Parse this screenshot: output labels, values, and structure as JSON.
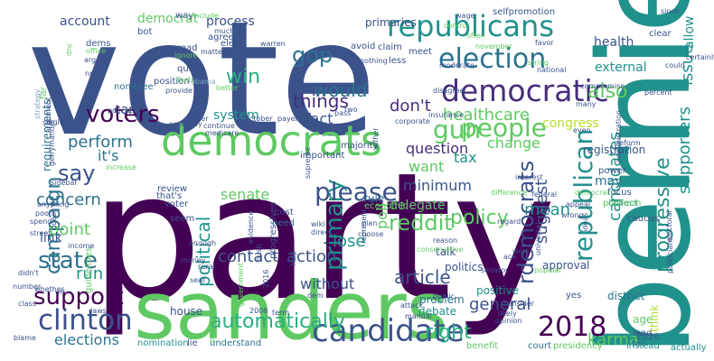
{
  "palette": {
    "dark_purple": "#440154",
    "purple": "#472d7b",
    "indigo": "#3b528b",
    "blue": "#2c728e",
    "teal": "#21918c",
    "green_teal": "#28ae80",
    "green": "#5ec962",
    "lime": "#addc30",
    "light_green": "#b5de2b",
    "pale_blue": "#7aa6c2"
  },
  "words": [
    {
      "text": "vote",
      "color": "indigo"
    },
    {
      "text": "party",
      "color": "dark_purple"
    },
    {
      "text": "sanders",
      "color": "green"
    },
    {
      "text": "bernie",
      "color": "teal"
    },
    {
      "text": "democrats",
      "color": "green"
    },
    {
      "text": "republicans",
      "color": "teal"
    },
    {
      "text": "democratic",
      "color": "purple"
    },
    {
      "text": "election",
      "color": "blue"
    },
    {
      "text": "candidate",
      "color": "indigo"
    },
    {
      "text": "clinton",
      "color": "indigo"
    },
    {
      "text": "2018",
      "color": "dark_purple"
    },
    {
      "text": "support",
      "color": "dark_purple"
    },
    {
      "text": "state",
      "color": "blue"
    },
    {
      "text": "primary",
      "color": "teal"
    },
    {
      "text": "voters",
      "color": "dark_purple"
    },
    {
      "text": "please",
      "color": "indigo"
    },
    {
      "text": "reddit",
      "color": "green"
    },
    {
      "text": "people",
      "color": "green"
    },
    {
      "text": "gun",
      "color": "green"
    },
    {
      "text": "policy",
      "color": "green"
    },
    {
      "text": "campaign",
      "color": "blue"
    },
    {
      "text": "republican",
      "color": "teal"
    },
    {
      "text": "progressive",
      "color": "teal"
    },
    {
      "text": "rdemocrats",
      "color": "indigo"
    },
    {
      "text": "say",
      "color": "indigo"
    },
    {
      "text": "gop",
      "color": "blue"
    },
    {
      "text": "would",
      "color": "blue"
    },
    {
      "text": "win",
      "color": "green_teal"
    },
    {
      "text": "political",
      "color": "teal"
    },
    {
      "text": "supporters",
      "color": "teal"
    },
    {
      "text": "issue",
      "color": "teal"
    },
    {
      "text": "candidates",
      "color": "teal"
    },
    {
      "text": "things",
      "color": "purple"
    },
    {
      "text": "healthcare",
      "color": "green"
    },
    {
      "text": "also",
      "color": "green"
    },
    {
      "text": "don't",
      "color": "purple"
    },
    {
      "text": "question",
      "color": "purple"
    },
    {
      "text": "contact",
      "color": "indigo"
    },
    {
      "text": "action",
      "color": "indigo"
    },
    {
      "text": "article",
      "color": "indigo"
    },
    {
      "text": "automatically",
      "color": "green_teal"
    },
    {
      "text": "right",
      "color": "green_teal"
    },
    {
      "text": "karma",
      "color": "green"
    },
    {
      "text": "general",
      "color": "indigo"
    },
    {
      "text": "mean",
      "color": "teal"
    },
    {
      "text": "suggest",
      "color": "indigo"
    },
    {
      "text": "lose",
      "color": "teal"
    },
    {
      "text": "point",
      "color": "green"
    },
    {
      "text": "run",
      "color": "teal"
    },
    {
      "text": "concern",
      "color": "blue"
    },
    {
      "text": "link",
      "color": "indigo"
    },
    {
      "text": "perform",
      "color": "blue"
    },
    {
      "text": "it's",
      "color": "blue"
    },
    {
      "text": "tax",
      "color": "teal"
    },
    {
      "text": "change",
      "color": "green"
    },
    {
      "text": "want",
      "color": "green"
    },
    {
      "text": "minimum",
      "color": "indigo"
    },
    {
      "text": "fact",
      "color": "indigo"
    },
    {
      "text": "senate",
      "color": "green"
    },
    {
      "text": "without",
      "color": "indigo"
    },
    {
      "text": "poll",
      "color": "green"
    },
    {
      "text": "elections",
      "color": "blue"
    },
    {
      "text": "account",
      "color": "indigo"
    },
    {
      "text": "democrat",
      "color": "green"
    },
    {
      "text": "process",
      "color": "indigo"
    },
    {
      "text": "care",
      "color": "indigo"
    },
    {
      "text": "system",
      "color": "teal"
    },
    {
      "text": "health",
      "color": "indigo"
    },
    {
      "text": "external",
      "color": "teal"
    },
    {
      "text": "congress",
      "color": "light_green"
    },
    {
      "text": "allow",
      "color": "teal"
    },
    {
      "text": "may",
      "color": "blue"
    },
    {
      "text": "delegate",
      "color": "green"
    },
    {
      "text": "talk",
      "color": "indigo"
    },
    {
      "text": "politics",
      "color": "indigo"
    },
    {
      "text": "house",
      "color": "indigo"
    },
    {
      "text": "positive",
      "color": "teal"
    },
    {
      "text": "approval",
      "color": "indigo"
    },
    {
      "text": "registration",
      "color": "indigo"
    },
    {
      "text": "district",
      "color": "blue"
    },
    {
      "text": "problem",
      "color": "blue"
    },
    {
      "text": "debate",
      "color": "teal"
    },
    {
      "text": "nomination",
      "color": "teal"
    },
    {
      "text": "lie",
      "color": "indigo"
    },
    {
      "text": "understand",
      "color": "blue"
    },
    {
      "text": "benefit",
      "color": "green"
    },
    {
      "text": "court",
      "color": "blue"
    },
    {
      "text": "presidency",
      "color": "green"
    },
    {
      "text": "instead",
      "color": "teal"
    },
    {
      "text": "actually",
      "color": "teal"
    },
    {
      "text": "2020",
      "color": "indigo"
    },
    {
      "text": "age",
      "color": "green"
    },
    {
      "text": "lead",
      "color": "indigo"
    },
    {
      "text": "lot",
      "color": "blue"
    },
    {
      "text": "think",
      "color": "lime"
    },
    {
      "text": "yes",
      "color": "indigo"
    },
    {
      "text": "focus",
      "color": "indigo"
    },
    {
      "text": "collect",
      "color": "teal"
    },
    {
      "text": "caucus",
      "color": "indigo"
    },
    {
      "text": "power",
      "color": "indigo"
    },
    {
      "text": "platform",
      "color": "green"
    },
    {
      "text": "rule",
      "color": "blue"
    },
    {
      "text": "economic",
      "color": "green"
    },
    {
      "text": "majority",
      "color": "indigo"
    },
    {
      "text": "important",
      "color": "indigo"
    },
    {
      "text": "cost",
      "color": "indigo"
    },
    {
      "text": "need",
      "color": "blue"
    },
    {
      "text": "review",
      "color": "indigo"
    },
    {
      "text": "voter",
      "color": "indigo"
    },
    {
      "text": "that's",
      "color": "indigo"
    },
    {
      "text": "seem",
      "color": "indigo"
    },
    {
      "text": "primaries",
      "color": "indigo"
    },
    {
      "text": "meet",
      "color": "indigo"
    },
    {
      "text": "claim",
      "color": "indigo"
    },
    {
      "text": "avoid",
      "color": "indigo"
    },
    {
      "text": "wage",
      "color": "indigo"
    },
    {
      "text": "selfpromotion",
      "color": "indigo"
    },
    {
      "text": "clear",
      "color": "indigo"
    },
    {
      "text": "since",
      "color": "indigo"
    },
    {
      "text": "elect",
      "color": "indigo"
    },
    {
      "text": "warren",
      "color": "indigo"
    },
    {
      "text": "less",
      "color": "indigo"
    },
    {
      "text": "agree",
      "color": "indigo"
    },
    {
      "text": "much",
      "color": "indigo"
    },
    {
      "text": "bot",
      "color": "indigo"
    },
    {
      "text": "way",
      "color": "indigo"
    },
    {
      "text": "include",
      "color": "green"
    },
    {
      "text": "dems",
      "color": "indigo"
    },
    {
      "text": "dnc",
      "color": "green"
    },
    {
      "text": "office",
      "color": "green"
    },
    {
      "text": "argue",
      "color": "indigo"
    },
    {
      "text": "np",
      "color": "indigo"
    },
    {
      "text": "far",
      "color": "green"
    },
    {
      "text": "requirements",
      "color": "blue"
    },
    {
      "text": "position",
      "color": "indigo"
    },
    {
      "text": "read",
      "color": "indigo"
    },
    {
      "text": "ignore",
      "color": "green"
    },
    {
      "text": "matter",
      "color": "indigo"
    },
    {
      "text": "query",
      "color": "indigo"
    },
    {
      "text": "nothing",
      "color": "indigo"
    },
    {
      "text": "moderate",
      "color": "indigo"
    },
    {
      "text": "november",
      "color": "green"
    },
    {
      "text": "string",
      "color": "green"
    },
    {
      "text": "national",
      "color": "indigo"
    },
    {
      "text": "favor",
      "color": "indigo"
    },
    {
      "text": "nominee",
      "color": "blue"
    },
    {
      "text": "facts",
      "color": "green"
    },
    {
      "text": "provide",
      "color": "indigo"
    },
    {
      "text": "obama",
      "color": "pale_blue"
    },
    {
      "text": "better",
      "color": "green"
    },
    {
      "text": "policies",
      "color": "indigo"
    },
    {
      "text": "strategy",
      "color": "pale_blue"
    },
    {
      "text": "single",
      "color": "indigo"
    },
    {
      "text": "argument",
      "color": "indigo"
    },
    {
      "text": "gerrymander",
      "color": "indigo"
    },
    {
      "text": "increase",
      "color": "green"
    },
    {
      "text": "economy",
      "color": "indigo"
    },
    {
      "text": "continue",
      "color": "indigo"
    },
    {
      "text": "medicare",
      "color": "indigo"
    },
    {
      "text": "rather",
      "color": "indigo"
    },
    {
      "text": "october",
      "color": "indigo"
    },
    {
      "text": "payer",
      "color": "indigo"
    },
    {
      "text": "two",
      "color": "indigo"
    },
    {
      "text": "corporate",
      "color": "indigo"
    },
    {
      "text": "insurance",
      "color": "indigo"
    },
    {
      "text": "disagree",
      "color": "indigo"
    },
    {
      "text": "pass",
      "color": "indigo"
    },
    {
      "text": "sidebar",
      "color": "indigo"
    },
    {
      "text": "anything",
      "color": "indigo"
    },
    {
      "text": "spend",
      "color": "indigo"
    },
    {
      "text": "street",
      "color": "indigo"
    },
    {
      "text": "guidelines",
      "color": "green"
    },
    {
      "text": "progressives",
      "color": "indigo"
    },
    {
      "text": "wiki",
      "color": "indigo"
    },
    {
      "text": "direct",
      "color": "indigo"
    },
    {
      "text": "plan",
      "color": "indigo"
    },
    {
      "text": "choose",
      "color": "indigo"
    },
    {
      "text": "reason",
      "color": "indigo"
    },
    {
      "text": "work",
      "color": "indigo"
    },
    {
      "text": "enough",
      "color": "indigo"
    },
    {
      "text": "money",
      "color": "indigo"
    },
    {
      "text": "rural",
      "color": "indigo"
    },
    {
      "text": "seat",
      "color": "indigo"
    },
    {
      "text": "laws",
      "color": "indigo"
    },
    {
      "text": "class",
      "color": "indigo"
    },
    {
      "text": "blame",
      "color": "indigo"
    },
    {
      "text": "number",
      "color": "indigo"
    },
    {
      "text": "whether",
      "color": "indigo"
    },
    {
      "text": "url",
      "color": "indigo"
    },
    {
      "text": "income",
      "color": "indigo"
    },
    {
      "text": "didn't",
      "color": "indigo"
    },
    {
      "text": "2016",
      "color": "indigo"
    },
    {
      "text": "2008",
      "color": "indigo"
    },
    {
      "text": "dem",
      "color": "indigo"
    },
    {
      "text": "term",
      "color": "indigo"
    },
    {
      "text": "government",
      "color": "green"
    },
    {
      "text": "attack",
      "color": "indigo"
    },
    {
      "text": "manual",
      "color": "indigo"
    },
    {
      "text": "public",
      "color": "indigo"
    },
    {
      "text": "conservative",
      "color": "green"
    },
    {
      "text": "senator",
      "color": "indigo"
    },
    {
      "text": "likely",
      "color": "indigo"
    },
    {
      "text": "consider",
      "color": "indigo"
    },
    {
      "text": "opinion",
      "color": "indigo"
    },
    {
      "text": "regard",
      "color": "indigo"
    },
    {
      "text": "popular",
      "color": "green"
    },
    {
      "text": "universal",
      "color": "indigo"
    },
    {
      "text": "ideas",
      "color": "indigo"
    },
    {
      "text": "democracy",
      "color": "green"
    },
    {
      "text": "appeal",
      "color": "indigo"
    },
    {
      "text": "federal",
      "color": "indigo"
    },
    {
      "text": "administration",
      "color": "indigo"
    },
    {
      "text": "reform",
      "color": "indigo"
    },
    {
      "text": "many",
      "color": "indigo"
    },
    {
      "text": "even",
      "color": "indigo"
    },
    {
      "text": "interest",
      "color": "indigo"
    },
    {
      "text": "difference",
      "color": "green"
    },
    {
      "text": "compromise",
      "color": "indigo"
    },
    {
      "text": "percent",
      "color": "indigo"
    },
    {
      "text": "could",
      "color": "indigo"
    },
    {
      "text": "politicians",
      "color": "indigo"
    },
    {
      "text": "electoral",
      "color": "indigo"
    },
    {
      "text": "represent",
      "color": "indigo"
    },
    {
      "text": "evidence",
      "color": "indigo"
    },
    {
      "text": "bush",
      "color": "indigo"
    },
    {
      "text": "supreme",
      "color": "indigo"
    },
    {
      "text": "help",
      "color": "indigo"
    },
    {
      "text": "presidential",
      "color": "green"
    },
    {
      "text": "certainly",
      "color": "indigo"
    },
    {
      "text": "wrong",
      "color": "indigo"
    },
    {
      "text": "control",
      "color": "green"
    },
    {
      "text": "often",
      "color": "green"
    },
    {
      "text": "aca",
      "color": "indigo"
    },
    {
      "text": "poor",
      "color": "indigo"
    },
    {
      "text": "doesn't",
      "color": "indigo"
    },
    {
      "text": "either",
      "color": "indigo"
    }
  ]
}
